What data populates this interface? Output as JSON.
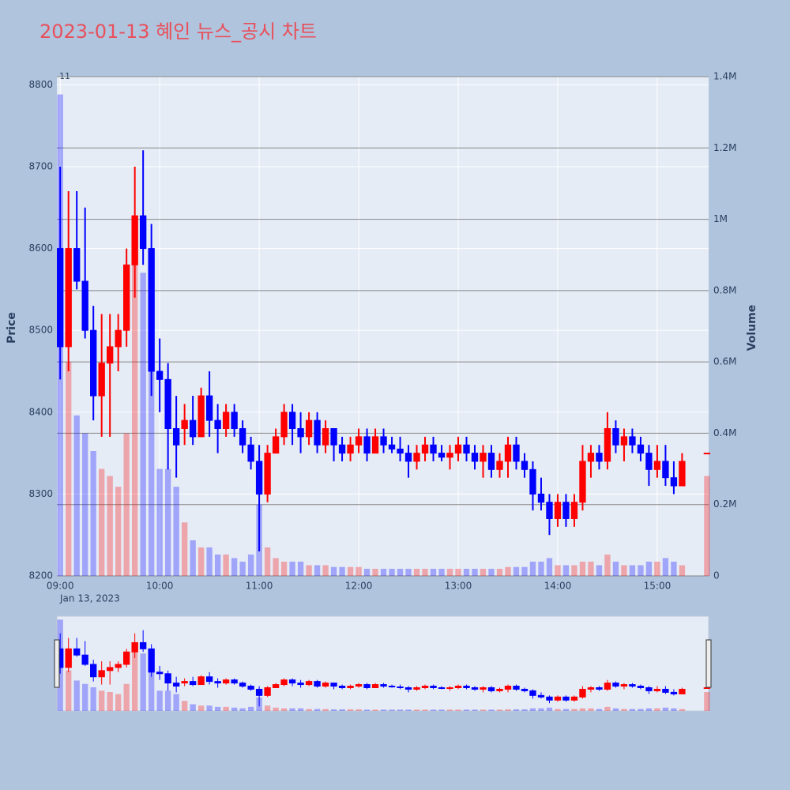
{
  "chart_data": {
    "type": "candlestick",
    "title": "2023-01-13 혜인 뉴스_공시 차트",
    "annotation": "11",
    "x_date_label": "Jan 13, 2023",
    "y_title": "Price",
    "y2_title": "Volume",
    "x": [
      "09:00",
      "09:05",
      "09:10",
      "09:15",
      "09:20",
      "09:25",
      "09:30",
      "09:35",
      "09:40",
      "09:45",
      "09:50",
      "09:55",
      "10:00",
      "10:05",
      "10:10",
      "10:15",
      "10:20",
      "10:25",
      "10:30",
      "10:35",
      "10:40",
      "10:45",
      "10:50",
      "10:55",
      "11:00",
      "11:05",
      "11:10",
      "11:15",
      "11:20",
      "11:25",
      "11:30",
      "11:35",
      "11:40",
      "11:45",
      "11:50",
      "11:55",
      "12:00",
      "12:05",
      "12:10",
      "12:15",
      "12:20",
      "12:25",
      "12:30",
      "12:35",
      "12:40",
      "12:45",
      "12:50",
      "12:55",
      "13:00",
      "13:05",
      "13:10",
      "13:15",
      "13:20",
      "13:25",
      "13:30",
      "13:35",
      "13:40",
      "13:45",
      "13:50",
      "13:55",
      "14:00",
      "14:05",
      "14:10",
      "14:15",
      "14:20",
      "14:25",
      "14:30",
      "14:35",
      "14:40",
      "14:45",
      "14:50",
      "14:55",
      "15:00",
      "15:05",
      "15:10",
      "15:15",
      "15:30"
    ],
    "open": [
      8600,
      8480,
      8600,
      8560,
      8500,
      8420,
      8460,
      8480,
      8500,
      8580,
      8640,
      8600,
      8450,
      8440,
      8380,
      8380,
      8390,
      8370,
      8420,
      8390,
      8380,
      8400,
      8380,
      8360,
      8340,
      8300,
      8350,
      8370,
      8400,
      8380,
      8370,
      8390,
      8360,
      8380,
      8360,
      8350,
      8360,
      8370,
      8350,
      8370,
      8360,
      8355,
      8350,
      8340,
      8350,
      8360,
      8350,
      8345,
      8350,
      8360,
      8350,
      8340,
      8350,
      8330,
      8340,
      8360,
      8340,
      8330,
      8300,
      8290,
      8270,
      8290,
      8270,
      8290,
      8340,
      8350,
      8340,
      8380,
      8360,
      8370,
      8360,
      8350,
      8330,
      8340,
      8320,
      8310,
      8350
    ],
    "high": [
      8700,
      8670,
      8670,
      8650,
      8530,
      8520,
      8520,
      8520,
      8600,
      8700,
      8720,
      8630,
      8490,
      8460,
      8420,
      8410,
      8420,
      8430,
      8450,
      8410,
      8410,
      8410,
      8390,
      8370,
      8360,
      8360,
      8380,
      8410,
      8410,
      8400,
      8400,
      8400,
      8390,
      8380,
      8370,
      8370,
      8380,
      8380,
      8380,
      8380,
      8370,
      8370,
      8360,
      8360,
      8370,
      8370,
      8360,
      8360,
      8370,
      8370,
      8360,
      8360,
      8360,
      8350,
      8370,
      8370,
      8350,
      8340,
      8320,
      8300,
      8300,
      8300,
      8300,
      8360,
      8360,
      8360,
      8400,
      8390,
      8380,
      8380,
      8370,
      8360,
      8360,
      8360,
      8340,
      8350,
      8350
    ],
    "low": [
      8440,
      8450,
      8550,
      8490,
      8390,
      8370,
      8370,
      8450,
      8480,
      8540,
      8580,
      8420,
      8400,
      8330,
      8320,
      8360,
      8360,
      8370,
      8370,
      8350,
      8370,
      8370,
      8350,
      8330,
      8230,
      8290,
      8350,
      8360,
      8360,
      8350,
      8360,
      8350,
      8350,
      8340,
      8340,
      8340,
      8350,
      8340,
      8350,
      8350,
      8350,
      8340,
      8320,
      8330,
      8340,
      8340,
      8340,
      8330,
      8340,
      8340,
      8330,
      8320,
      8320,
      8320,
      8320,
      8330,
      8320,
      8280,
      8280,
      8250,
      8260,
      8260,
      8260,
      8280,
      8320,
      8330,
      8330,
      8350,
      8340,
      8350,
      8340,
      8310,
      8320,
      8310,
      8300,
      8310,
      8350
    ],
    "close": [
      8480,
      8600,
      8560,
      8500,
      8420,
      8460,
      8480,
      8500,
      8580,
      8640,
      8600,
      8450,
      8440,
      8380,
      8360,
      8390,
      8370,
      8420,
      8390,
      8380,
      8400,
      8380,
      8360,
      8340,
      8300,
      8350,
      8370,
      8400,
      8380,
      8370,
      8390,
      8360,
      8380,
      8360,
      8350,
      8360,
      8370,
      8350,
      8370,
      8360,
      8355,
      8350,
      8340,
      8350,
      8360,
      8350,
      8345,
      8350,
      8360,
      8350,
      8340,
      8350,
      8330,
      8340,
      8360,
      8340,
      8330,
      8300,
      8290,
      8270,
      8290,
      8270,
      8290,
      8340,
      8350,
      8340,
      8380,
      8360,
      8370,
      8360,
      8350,
      8330,
      8340,
      8320,
      8310,
      8340,
      8350
    ],
    "volume": [
      1350000,
      600000,
      450000,
      400000,
      350000,
      300000,
      280000,
      250000,
      400000,
      900000,
      850000,
      800000,
      300000,
      300000,
      250000,
      150000,
      100000,
      80000,
      80000,
      60000,
      60000,
      50000,
      40000,
      60000,
      200000,
      80000,
      50000,
      40000,
      40000,
      40000,
      30000,
      30000,
      30000,
      25000,
      25000,
      25000,
      25000,
      20000,
      20000,
      20000,
      20000,
      20000,
      20000,
      20000,
      20000,
      20000,
      20000,
      20000,
      20000,
      20000,
      20000,
      20000,
      20000,
      20000,
      25000,
      25000,
      25000,
      40000,
      40000,
      50000,
      30000,
      30000,
      30000,
      40000,
      40000,
      30000,
      60000,
      40000,
      30000,
      30000,
      30000,
      40000,
      40000,
      50000,
      40000,
      30000,
      280000
    ],
    "increasing_color": "#ff0000",
    "decreasing_color": "#0000ff",
    "xlim": [
      "08:58",
      "15:31"
    ],
    "xticks": [
      "09:00",
      "10:00",
      "11:00",
      "12:00",
      "13:00",
      "14:00",
      "15:00"
    ],
    "ylim": [
      8200,
      8810
    ],
    "yticks": [
      8200,
      8300,
      8400,
      8500,
      8600,
      8700,
      8800
    ],
    "y2lim": [
      0,
      1400000
    ],
    "y2ticks": [
      0,
      {
        "value": 200000,
        "label": "0.2M"
      },
      {
        "value": 400000,
        "label": "0.4M"
      },
      {
        "value": 600000,
        "label": "0.6M"
      },
      {
        "value": 800000,
        "label": "0.8M"
      },
      {
        "value": 1000000,
        "label": "1M"
      },
      {
        "value": 1200000,
        "label": "1.2M"
      },
      {
        "value": 1400000,
        "label": "1.4M"
      }
    ],
    "grid": true,
    "rangeslider": true
  }
}
